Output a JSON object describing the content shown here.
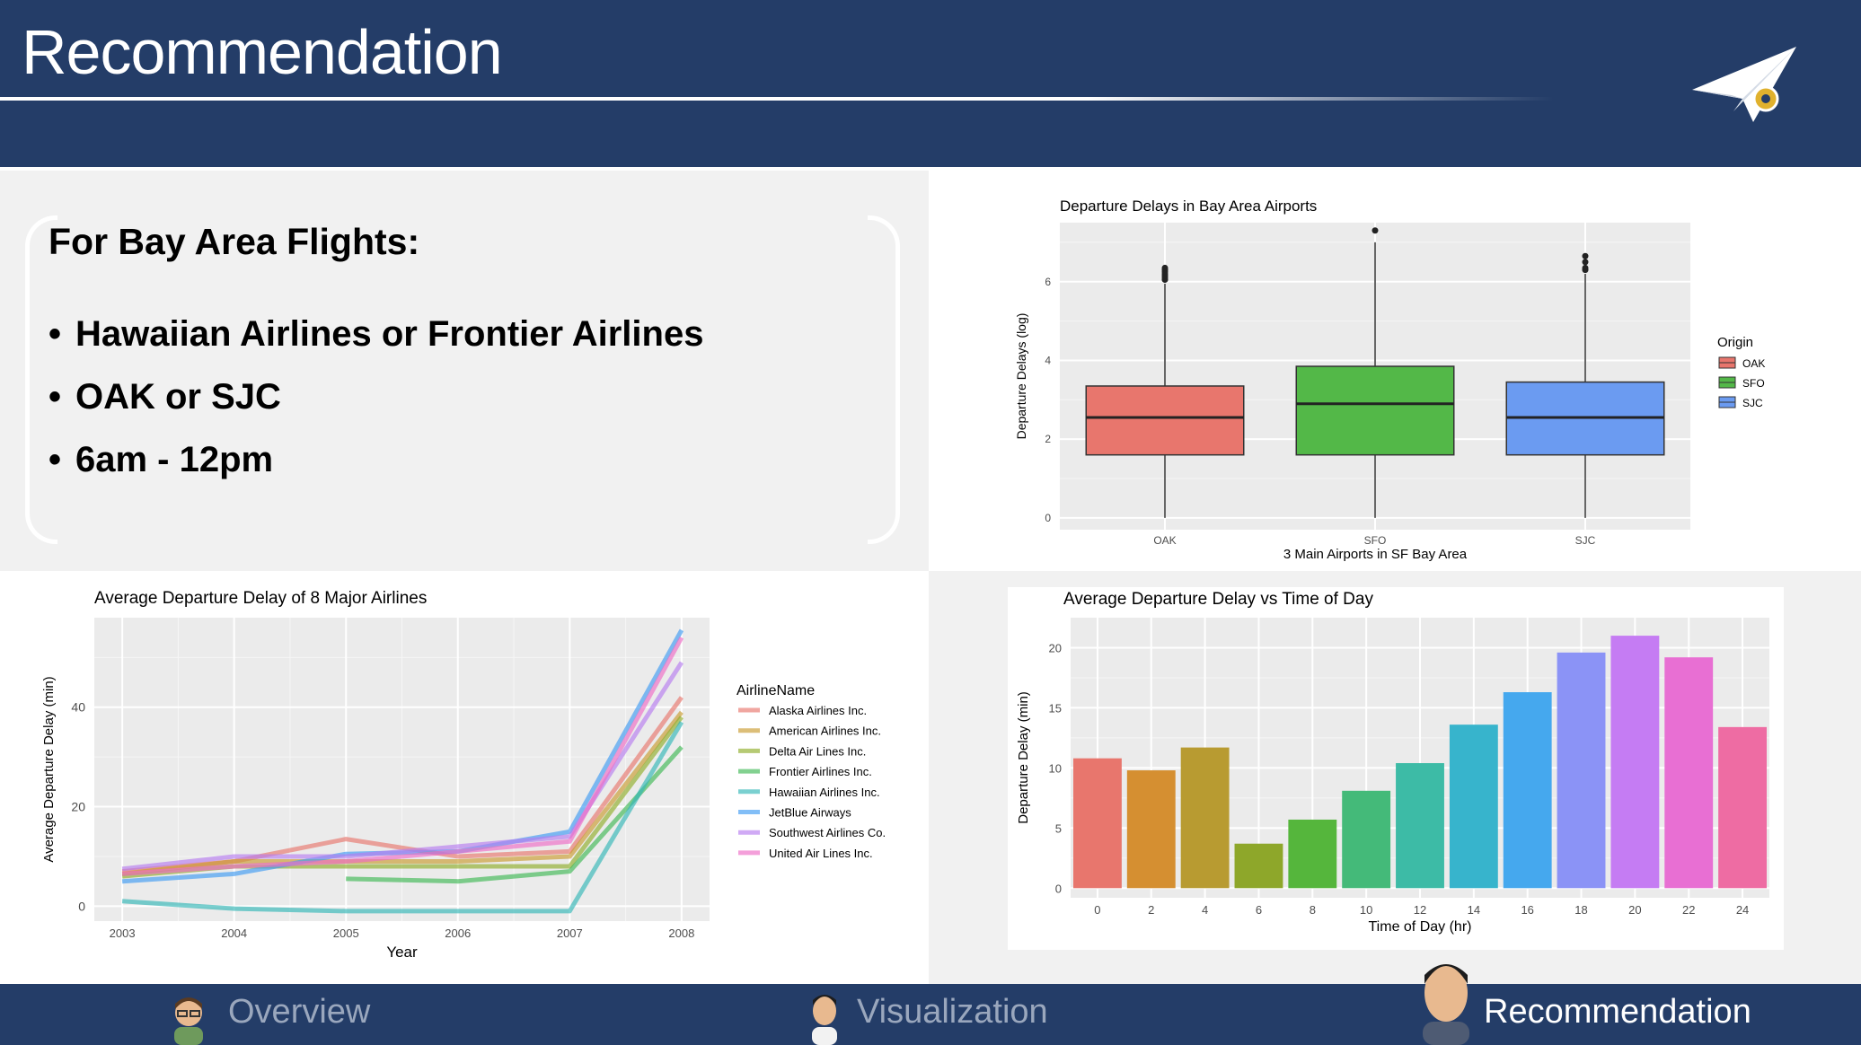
{
  "header": {
    "title": "Recommendation"
  },
  "recommendation": {
    "heading": "For Bay Area Flights:",
    "bullet_char": "•",
    "items": [
      "Hawaiian Airlines or Frontier Airlines",
      "OAK or SJC",
      "6am - 12pm"
    ]
  },
  "footer": {
    "nav": [
      {
        "label": "Overview",
        "icon": "person-glasses-icon",
        "active": false
      },
      {
        "label": "Visualization",
        "icon": "person-icon",
        "active": false
      },
      {
        "label": "Recommendation",
        "icon": "person-large-icon",
        "active": true
      }
    ]
  },
  "logo": {
    "icon": "paper-plane-icon"
  },
  "colors": {
    "header_bg": "#243d68",
    "panel_bg": "#ebebeb",
    "grid": "#ffffff"
  },
  "chart_data": [
    {
      "type": "box",
      "title": "Departure Delays in Bay Area Airports",
      "xlabel": "3 Main Airports in SF Bay Area",
      "ylabel": "Departure Delays (log)",
      "ylim": [
        -0.3,
        7.5
      ],
      "yticks": [
        0,
        2,
        4,
        6
      ],
      "legend": {
        "title": "Origin",
        "position": "right"
      },
      "categories": [
        "OAK",
        "SFO",
        "SJC"
      ],
      "colors": [
        "#e8766d",
        "#53b848",
        "#6b9bf1"
      ],
      "boxes": [
        {
          "name": "OAK",
          "min": 0,
          "q1": 1.6,
          "median": 2.55,
          "q3": 3.35,
          "max": 5.95,
          "outliers": [
            6.05,
            6.1,
            6.15,
            6.2,
            6.25,
            6.3,
            6.35
          ]
        },
        {
          "name": "SFO",
          "min": 0,
          "q1": 1.6,
          "median": 2.9,
          "q3": 3.85,
          "max": 7.0,
          "outliers": [
            7.3
          ]
        },
        {
          "name": "SJC",
          "min": 0,
          "q1": 1.6,
          "median": 2.55,
          "q3": 3.45,
          "max": 6.2,
          "outliers": [
            6.3,
            6.35,
            6.5,
            6.65
          ]
        }
      ]
    },
    {
      "type": "line",
      "title": "Average Departure Delay of 8 Major Airlines",
      "xlabel": "Year",
      "ylabel": "Average Departure Delay (min)",
      "x": [
        2003,
        2004,
        2005,
        2006,
        2007,
        2008
      ],
      "xlim": [
        2002.75,
        2008.25
      ],
      "ylim": [
        -3,
        58
      ],
      "yticks": [
        0,
        20,
        40
      ],
      "legend": {
        "title": "AirlineName",
        "position": "right"
      },
      "series": [
        {
          "name": "Alaska Airlines Inc.",
          "color": "#e8766d",
          "values": [
            7,
            9,
            13.5,
            10,
            11,
            42
          ]
        },
        {
          "name": "American Airlines Inc.",
          "color": "#c99b2f",
          "values": [
            6.5,
            9,
            9,
            9,
            10,
            39
          ]
        },
        {
          "name": "Delta Air Lines Inc.",
          "color": "#8fae29",
          "values": [
            6,
            8,
            8,
            8,
            8,
            38
          ]
        },
        {
          "name": "Frontier Airlines Inc.",
          "color": "#3fb855",
          "values": [
            null,
            null,
            5.5,
            5,
            7,
            32
          ]
        },
        {
          "name": "Hawaiian Airlines Inc.",
          "color": "#33b7b7",
          "values": [
            1,
            -0.5,
            -1,
            -1,
            -1,
            37
          ]
        },
        {
          "name": "JetBlue Airways",
          "color": "#3f9bf2",
          "values": [
            5,
            6.5,
            10.5,
            11,
            15,
            55.5
          ]
        },
        {
          "name": "Southwest Airlines Co.",
          "color": "#b77cf0",
          "values": [
            7.5,
            10,
            10,
            12,
            14,
            49
          ]
        },
        {
          "name": "United Air Lines Inc.",
          "color": "#ee6cc6",
          "values": [
            6.5,
            8,
            9,
            11,
            13,
            54
          ]
        }
      ]
    },
    {
      "type": "bar",
      "title": "Average Departure Delay vs Time of Day",
      "xlabel": "Time of Day (hr)",
      "ylabel": "Departure Delay (min)",
      "categories": [
        "0",
        "2",
        "4",
        "6",
        "8",
        "10",
        "12",
        "14",
        "16",
        "18",
        "20",
        "22",
        "24"
      ],
      "values": [
        10.8,
        9.8,
        11.7,
        3.7,
        5.7,
        8.1,
        10.4,
        13.6,
        16.3,
        19.6,
        21.0,
        19.2,
        13.4
      ],
      "ylim": [
        -0.8,
        22.5
      ],
      "yticks": [
        0,
        5,
        10,
        15,
        20
      ],
      "colors": [
        "#e8766d",
        "#d58f31",
        "#b89b31",
        "#8ea72a",
        "#55b63c",
        "#44ba79",
        "#3dbba6",
        "#37b4cc",
        "#45a8ee",
        "#8b93f6",
        "#c57cf3",
        "#e86fd3",
        "#ee6ca3"
      ]
    }
  ]
}
